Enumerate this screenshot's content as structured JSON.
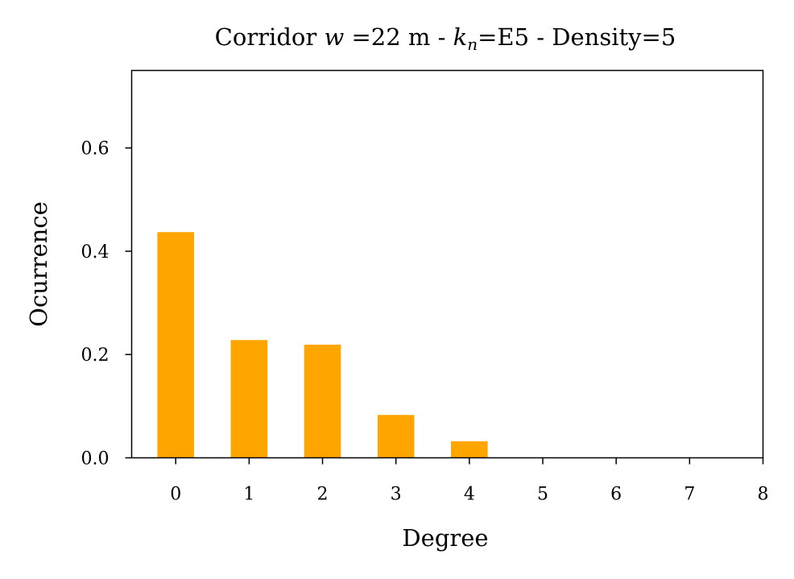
{
  "chart_data": {
    "type": "bar",
    "title": {
      "part1": "Corridor ",
      "w": "w",
      "part2": " =22 m - ",
      "k": "k",
      "k_sub": "n",
      "part3": "=E5 - Density=5"
    },
    "xlabel": "Degree",
    "ylabel": "Ocurrence",
    "x": [
      0,
      1,
      2,
      3,
      4,
      5,
      6,
      7,
      8
    ],
    "values": [
      0.437,
      0.228,
      0.219,
      0.083,
      0.032,
      0,
      0,
      0,
      0
    ],
    "xlim": [
      -0.6,
      8
    ],
    "ylim": [
      0,
      0.75
    ],
    "xticks": [
      "0",
      "1",
      "2",
      "3",
      "4",
      "5",
      "6",
      "7",
      "8"
    ],
    "yticks": [
      {
        "value": 0.0,
        "label": "0.0"
      },
      {
        "value": 0.2,
        "label": "0.2"
      },
      {
        "value": 0.4,
        "label": "0.4"
      },
      {
        "value": 0.6,
        "label": "0.6"
      }
    ],
    "bar_width": 0.5,
    "bar_color": "#FFA500",
    "grid": false
  }
}
